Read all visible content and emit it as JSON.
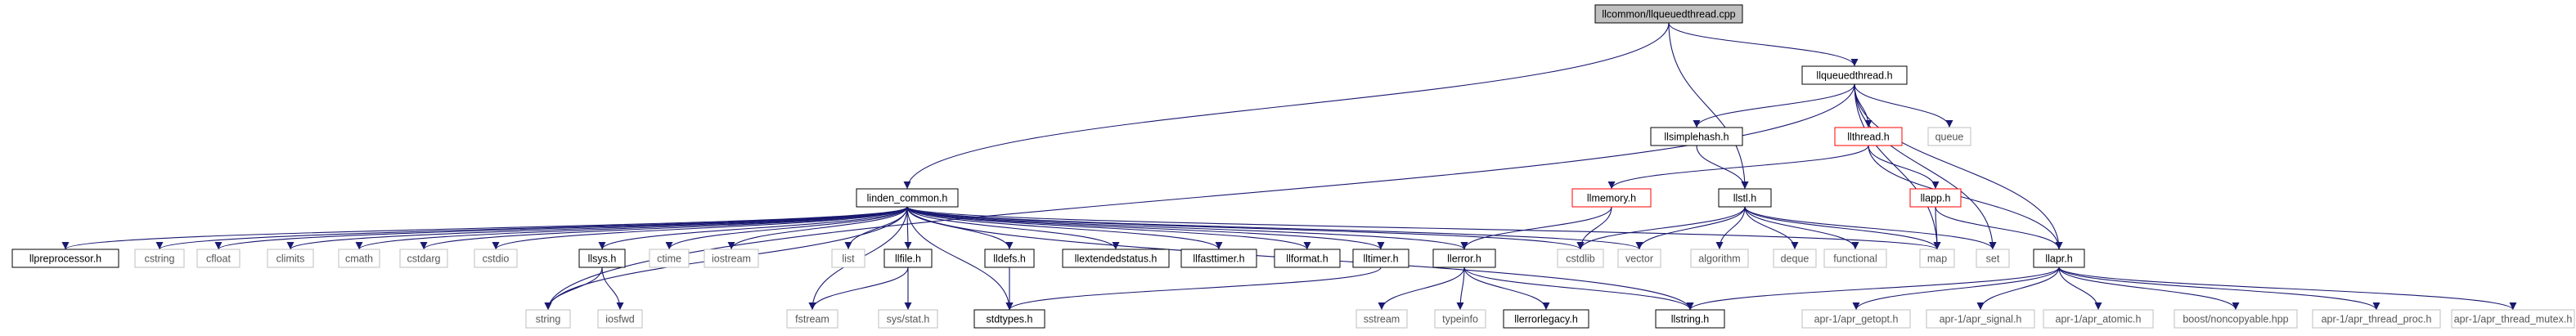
{
  "diagram": {
    "edge_color": "#191970",
    "nodes": [
      {
        "id": "root",
        "label": "llcommon/llqueuedthread.cpp",
        "style": "root"
      },
      {
        "id": "llqueuedthread",
        "label": "llqueuedthread.h",
        "style": "black"
      },
      {
        "id": "linden_common",
        "label": "linden_common.h",
        "style": "black"
      },
      {
        "id": "string",
        "label": "string",
        "style": "grey"
      },
      {
        "id": "llsimplehash",
        "label": "llsimplehash.h",
        "style": "black"
      },
      {
        "id": "llthread",
        "label": "llthread.h",
        "style": "red"
      },
      {
        "id": "queue",
        "label": "queue",
        "style": "grey"
      },
      {
        "id": "llmemory",
        "label": "llmemory.h",
        "style": "red"
      },
      {
        "id": "llstl",
        "label": "llstl.h",
        "style": "black"
      },
      {
        "id": "llapp",
        "label": "llapp.h",
        "style": "red"
      },
      {
        "id": "llpreprocessor",
        "label": "llpreprocessor.h",
        "style": "black"
      },
      {
        "id": "cstring",
        "label": "cstring",
        "style": "grey"
      },
      {
        "id": "cfloat",
        "label": "cfloat",
        "style": "grey"
      },
      {
        "id": "climits",
        "label": "climits",
        "style": "grey"
      },
      {
        "id": "cmath",
        "label": "cmath",
        "style": "grey"
      },
      {
        "id": "cstdarg",
        "label": "cstdarg",
        "style": "grey"
      },
      {
        "id": "cstdio",
        "label": "cstdio",
        "style": "grey"
      },
      {
        "id": "llsys",
        "label": "llsys.h",
        "style": "black"
      },
      {
        "id": "ctime",
        "label": "ctime",
        "style": "grey"
      },
      {
        "id": "iostream",
        "label": "iostream",
        "style": "grey"
      },
      {
        "id": "list",
        "label": "list",
        "style": "grey"
      },
      {
        "id": "llfile",
        "label": "llfile.h",
        "style": "black"
      },
      {
        "id": "lldefs",
        "label": "lldefs.h",
        "style": "black"
      },
      {
        "id": "llextendedstatus",
        "label": "llextendedstatus.h",
        "style": "black"
      },
      {
        "id": "llfasttimer",
        "label": "llfasttimer.h",
        "style": "black"
      },
      {
        "id": "llformat",
        "label": "llformat.h",
        "style": "black"
      },
      {
        "id": "lltimer",
        "label": "lltimer.h",
        "style": "black"
      },
      {
        "id": "llerror",
        "label": "llerror.h",
        "style": "black"
      },
      {
        "id": "cstdlib",
        "label": "cstdlib",
        "style": "grey"
      },
      {
        "id": "vector",
        "label": "vector",
        "style": "grey"
      },
      {
        "id": "algorithm",
        "label": "algorithm",
        "style": "grey"
      },
      {
        "id": "deque",
        "label": "deque",
        "style": "grey"
      },
      {
        "id": "functional",
        "label": "functional",
        "style": "grey"
      },
      {
        "id": "map",
        "label": "map",
        "style": "grey"
      },
      {
        "id": "set",
        "label": "set",
        "style": "grey"
      },
      {
        "id": "llapr",
        "label": "llapr.h",
        "style": "black"
      },
      {
        "id": "iosfwd",
        "label": "iosfwd",
        "style": "grey"
      },
      {
        "id": "fstream",
        "label": "fstream",
        "style": "grey"
      },
      {
        "id": "sysstat",
        "label": "sys/stat.h",
        "style": "grey"
      },
      {
        "id": "stdtypes",
        "label": "stdtypes.h",
        "style": "black"
      },
      {
        "id": "sstream",
        "label": "sstream",
        "style": "grey"
      },
      {
        "id": "typeinfo",
        "label": "typeinfo",
        "style": "grey"
      },
      {
        "id": "llerrorlegacy",
        "label": "llerrorlegacy.h",
        "style": "black"
      },
      {
        "id": "llstring",
        "label": "llstring.h",
        "style": "black"
      },
      {
        "id": "apr_getopt",
        "label": "apr-1/apr_getopt.h",
        "style": "grey"
      },
      {
        "id": "apr_signal",
        "label": "apr-1/apr_signal.h",
        "style": "grey"
      },
      {
        "id": "apr_atomic",
        "label": "apr-1/apr_atomic.h",
        "style": "grey"
      },
      {
        "id": "noncopyable",
        "label": "boost/noncopyable.hpp",
        "style": "grey"
      },
      {
        "id": "apr_thread_proc",
        "label": "apr-1/apr_thread_proc.h",
        "style": "grey"
      },
      {
        "id": "apr_thread_mutex",
        "label": "apr-1/apr_thread_mutex.h",
        "style": "grey"
      }
    ],
    "edges": [
      [
        "root",
        "llqueuedthread"
      ],
      [
        "root",
        "linden_common"
      ],
      [
        "root",
        "llstl"
      ],
      [
        "llqueuedthread",
        "string"
      ],
      [
        "llqueuedthread",
        "llsimplehash"
      ],
      [
        "llqueuedthread",
        "llthread"
      ],
      [
        "llqueuedthread",
        "queue"
      ],
      [
        "llqueuedthread",
        "map"
      ],
      [
        "llqueuedthread",
        "set"
      ],
      [
        "llqueuedthread",
        "llapr"
      ],
      [
        "llsimplehash",
        "llstl"
      ],
      [
        "llthread",
        "llmemory"
      ],
      [
        "llthread",
        "llapp"
      ],
      [
        "llthread",
        "llapr"
      ],
      [
        "llmemory",
        "cstdlib"
      ],
      [
        "llmemory",
        "llerror"
      ],
      [
        "llapp",
        "map"
      ],
      [
        "llapp",
        "llapr"
      ],
      [
        "llstl",
        "vector"
      ],
      [
        "llstl",
        "algorithm"
      ],
      [
        "llstl",
        "deque"
      ],
      [
        "llstl",
        "functional"
      ],
      [
        "llstl",
        "map"
      ],
      [
        "llstl",
        "set"
      ],
      [
        "llstl",
        "cstdlib"
      ],
      [
        "linden_common",
        "llpreprocessor"
      ],
      [
        "linden_common",
        "cstring"
      ],
      [
        "linden_common",
        "cfloat"
      ],
      [
        "linden_common",
        "climits"
      ],
      [
        "linden_common",
        "cmath"
      ],
      [
        "linden_common",
        "cstdarg"
      ],
      [
        "linden_common",
        "cstdio"
      ],
      [
        "linden_common",
        "llsys"
      ],
      [
        "linden_common",
        "ctime"
      ],
      [
        "linden_common",
        "iostream"
      ],
      [
        "linden_common",
        "list"
      ],
      [
        "linden_common",
        "llfile"
      ],
      [
        "linden_common",
        "lldefs"
      ],
      [
        "linden_common",
        "llextendedstatus"
      ],
      [
        "linden_common",
        "llfasttimer"
      ],
      [
        "linden_common",
        "llformat"
      ],
      [
        "linden_common",
        "lltimer"
      ],
      [
        "linden_common",
        "llerror"
      ],
      [
        "linden_common",
        "cstdlib"
      ],
      [
        "linden_common",
        "vector"
      ],
      [
        "linden_common",
        "map"
      ],
      [
        "linden_common",
        "string"
      ],
      [
        "linden_common",
        "fstream"
      ],
      [
        "linden_common",
        "stdtypes"
      ],
      [
        "linden_common",
        "llstring"
      ],
      [
        "llsys",
        "string"
      ],
      [
        "llsys",
        "iosfwd"
      ],
      [
        "llfile",
        "fstream"
      ],
      [
        "llfile",
        "sysstat"
      ],
      [
        "lldefs",
        "stdtypes"
      ],
      [
        "lltimer",
        "stdtypes"
      ],
      [
        "llerror",
        "sstream"
      ],
      [
        "llerror",
        "typeinfo"
      ],
      [
        "llerror",
        "llerrorlegacy"
      ],
      [
        "llerror",
        "llstring"
      ],
      [
        "llapr",
        "llstring"
      ],
      [
        "llapr",
        "apr_getopt"
      ],
      [
        "llapr",
        "apr_signal"
      ],
      [
        "llapr",
        "apr_atomic"
      ],
      [
        "llapr",
        "noncopyable"
      ],
      [
        "llapr",
        "apr_thread_proc"
      ],
      [
        "llapr",
        "apr_thread_mutex"
      ]
    ]
  }
}
